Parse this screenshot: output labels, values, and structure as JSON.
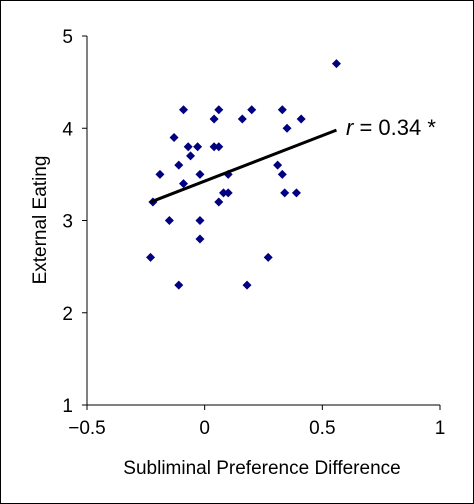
{
  "chart_data": {
    "type": "scatter",
    "title": "",
    "xlabel": "Subliminal Preference Difference",
    "ylabel": "External Eating",
    "xlim": [
      -0.5,
      1
    ],
    "ylim": [
      1,
      5
    ],
    "xticks": [
      -0.5,
      0,
      0.5,
      1
    ],
    "xtick_labels": [
      "−0.5",
      "0",
      "0.5",
      "1"
    ],
    "yticks": [
      1,
      2,
      3,
      4,
      5
    ],
    "ytick_labels": [
      "1",
      "2",
      "3",
      "4",
      "5"
    ],
    "grid": false,
    "legend": "none",
    "marker_color": "#000080",
    "marker": "diamond",
    "points": [
      {
        "x": -0.23,
        "y": 2.6
      },
      {
        "x": -0.22,
        "y": 3.2
      },
      {
        "x": -0.19,
        "y": 3.5
      },
      {
        "x": -0.15,
        "y": 3.0
      },
      {
        "x": -0.13,
        "y": 3.9
      },
      {
        "x": -0.11,
        "y": 3.6
      },
      {
        "x": -0.11,
        "y": 2.3
      },
      {
        "x": -0.09,
        "y": 4.2
      },
      {
        "x": -0.09,
        "y": 3.4
      },
      {
        "x": -0.07,
        "y": 3.8
      },
      {
        "x": -0.06,
        "y": 3.7
      },
      {
        "x": -0.03,
        "y": 3.8
      },
      {
        "x": -0.02,
        "y": 3.5
      },
      {
        "x": -0.02,
        "y": 3.0
      },
      {
        "x": -0.02,
        "y": 2.8
      },
      {
        "x": 0.04,
        "y": 4.1
      },
      {
        "x": 0.04,
        "y": 3.8
      },
      {
        "x": 0.06,
        "y": 4.2
      },
      {
        "x": 0.06,
        "y": 3.8
      },
      {
        "x": 0.06,
        "y": 3.2
      },
      {
        "x": 0.08,
        "y": 3.3
      },
      {
        "x": 0.1,
        "y": 3.5
      },
      {
        "x": 0.1,
        "y": 3.3
      },
      {
        "x": 0.16,
        "y": 4.1
      },
      {
        "x": 0.18,
        "y": 2.3
      },
      {
        "x": 0.2,
        "y": 4.2
      },
      {
        "x": 0.27,
        "y": 2.6
      },
      {
        "x": 0.31,
        "y": 3.6
      },
      {
        "x": 0.33,
        "y": 3.5
      },
      {
        "x": 0.33,
        "y": 4.2
      },
      {
        "x": 0.34,
        "y": 3.3
      },
      {
        "x": 0.35,
        "y": 4.0
      },
      {
        "x": 0.39,
        "y": 3.3
      },
      {
        "x": 0.41,
        "y": 4.1
      },
      {
        "x": 0.56,
        "y": 4.7
      }
    ],
    "trendline": {
      "x": [
        -0.23,
        0.56
      ],
      "y": [
        3.2,
        3.98
      ],
      "color": "#000000"
    },
    "annotation": {
      "r_symbol": "r",
      "value_text": " = 0.34 *"
    }
  }
}
